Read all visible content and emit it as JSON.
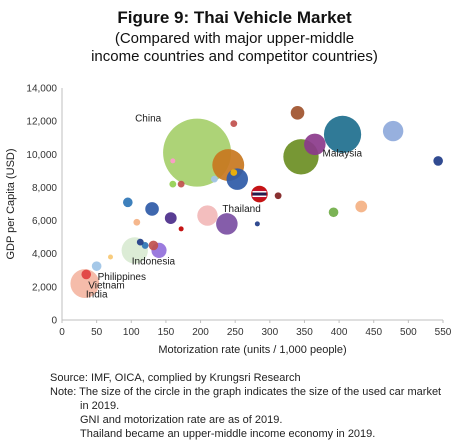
{
  "title": "Figure 9: Thai Vehicle Market",
  "subtitle_line1": "(Compared with major upper-middle",
  "subtitle_line2": "income countries and competitor countries)",
  "notes": {
    "source": "Source: IMF, OICA, complied by Krungsri Research",
    "note1": "Note: The size of the circle in the graph indicates the size of the used car market",
    "note2": "in 2019.",
    "note3": "GNI and motorization rate are as of 2019.",
    "note4": "Thailand became an upper-middle income economy in 2019."
  },
  "chart_data": {
    "type": "bubble",
    "title": "Figure 9: Thai Vehicle Market",
    "xlabel": "Motorization rate (units / 1,000 people)",
    "ylabel": "GDP per Capita (USD)",
    "xlim": [
      0,
      550
    ],
    "ylim": [
      0,
      14000
    ],
    "xticks": [
      0,
      50,
      100,
      150,
      200,
      250,
      300,
      350,
      400,
      450,
      500,
      550
    ],
    "yticks": [
      0,
      2000,
      4000,
      6000,
      8000,
      10000,
      12000,
      14000
    ],
    "ytick_labels": [
      "0",
      "2,000",
      "4,000",
      "6,000",
      "8,000",
      "10,000",
      "12,000",
      "14,000"
    ],
    "grid": false,
    "legend": "none",
    "points": [
      {
        "x": 195,
        "y": 10100,
        "size": 1.0,
        "color": "#a6cf6b",
        "label": "China"
      },
      {
        "x": 405,
        "y": 11200,
        "size": 0.3,
        "color": "#1e6f8e",
        "label": "Malaysia"
      },
      {
        "x": 345,
        "y": 9850,
        "size": 0.27,
        "color": "#6b8e23"
      },
      {
        "x": 240,
        "y": 9350,
        "size": 0.22,
        "color": "#c8771f"
      },
      {
        "x": 365,
        "y": 10600,
        "size": 0.1,
        "color": "#8b3a8b"
      },
      {
        "x": 478,
        "y": 11400,
        "size": 0.09,
        "color": "#8ea9db"
      },
      {
        "x": 340,
        "y": 12500,
        "size": 0.04,
        "color": "#a0522d"
      },
      {
        "x": 543,
        "y": 9600,
        "size": 0.02,
        "color": "#1f3c88"
      },
      {
        "x": 253,
        "y": 8500,
        "size": 0.1,
        "color": "#2e5aa7"
      },
      {
        "x": 285,
        "y": 7600,
        "size": 0.06,
        "color": "#c00000",
        "label": "Thailand"
      },
      {
        "x": 312,
        "y": 7500,
        "size": 0.01,
        "color": "#7f1f1f"
      },
      {
        "x": 432,
        "y": 6850,
        "size": 0.03,
        "color": "#f4b183"
      },
      {
        "x": 392,
        "y": 6500,
        "size": 0.02,
        "color": "#70ad47"
      },
      {
        "x": 248,
        "y": 11850,
        "size": 0.01,
        "color": "#c0504d"
      },
      {
        "x": 248,
        "y": 8900,
        "size": 0.01,
        "color": "#f7b400"
      },
      {
        "x": 220,
        "y": 8500,
        "size": 0.01,
        "color": "#a2c4e8"
      },
      {
        "x": 160,
        "y": 8200,
        "size": 0.01,
        "color": "#92d050"
      },
      {
        "x": 172,
        "y": 8200,
        "size": 0.01,
        "color": "#c0504d"
      },
      {
        "x": 160,
        "y": 9600,
        "size": 0.005,
        "color": "#ff99cc"
      },
      {
        "x": 130,
        "y": 6700,
        "size": 0.04,
        "color": "#2e5aa7"
      },
      {
        "x": 157,
        "y": 6150,
        "size": 0.03,
        "color": "#4b2c8a"
      },
      {
        "x": 210,
        "y": 6300,
        "size": 0.09,
        "color": "#f2b8b8"
      },
      {
        "x": 238,
        "y": 5800,
        "size": 0.1,
        "color": "#7b4fa3"
      },
      {
        "x": 172,
        "y": 5500,
        "size": 0.005,
        "color": "#c00000"
      },
      {
        "x": 282,
        "y": 5800,
        "size": 0.005,
        "color": "#1f3c88"
      },
      {
        "x": 95,
        "y": 7100,
        "size": 0.02,
        "color": "#2e75b6"
      },
      {
        "x": 108,
        "y": 5900,
        "size": 0.01,
        "color": "#f4b183"
      },
      {
        "x": 120,
        "y": 4500,
        "size": 0.01,
        "color": "#2e75b6"
      },
      {
        "x": 113,
        "y": 4700,
        "size": 0.01,
        "color": "#1f3c88"
      },
      {
        "x": 132,
        "y": 4500,
        "size": 0.02,
        "color": "#c0504d"
      },
      {
        "x": 140,
        "y": 4200,
        "size": 0.05,
        "color": "#9370db"
      },
      {
        "x": 105,
        "y": 4200,
        "size": 0.15,
        "color": "#d9ead3",
        "label": "Indonesia"
      },
      {
        "x": 70,
        "y": 3800,
        "size": 0.005,
        "color": "#f7c873"
      },
      {
        "x": 50,
        "y": 3250,
        "size": 0.02,
        "color": "#9dc3e6",
        "label": "Philippines"
      },
      {
        "x": 35,
        "y": 2750,
        "size": 0.02,
        "color": "#e04040",
        "label": "Vietnam"
      },
      {
        "x": 33,
        "y": 2200,
        "size": 0.18,
        "color": "#f4b6a3",
        "label": "India"
      }
    ],
    "annotations": [
      {
        "text": "China"
      },
      {
        "text": "Malaysia"
      },
      {
        "text": "Thailand"
      },
      {
        "text": "Indonesia"
      },
      {
        "text": "Philippines"
      },
      {
        "text": "Vietnam"
      },
      {
        "text": "India"
      }
    ]
  }
}
